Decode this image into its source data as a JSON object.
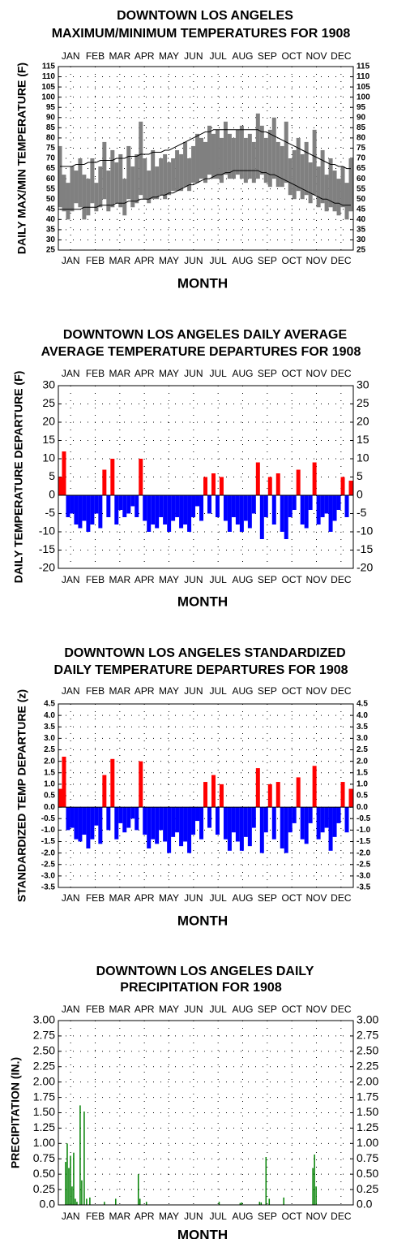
{
  "chart_data": [
    {
      "type": "range",
      "title": [
        "DOWNTOWN LOS ANGELES",
        "MAXIMUM/MINIMUM TEMPERATURES FOR 1908"
      ],
      "ylabel": "DAILY MAX/MIN TEMPERATURE (F)",
      "xlabel": "MONTH",
      "months": [
        "JAN",
        "FEB",
        "MAR",
        "APR",
        "MAY",
        "JUN",
        "JUL",
        "AUG",
        "SEP",
        "OCT",
        "NOV",
        "DEC"
      ],
      "xlim": [
        1,
        366
      ],
      "x": [
        3,
        8,
        13,
        18,
        23,
        28,
        33,
        38,
        43,
        48,
        53,
        58,
        63,
        68,
        73,
        78,
        83,
        88,
        93,
        98,
        103,
        108,
        113,
        118,
        123,
        128,
        133,
        138,
        143,
        148,
        153,
        158,
        163,
        168,
        173,
        178,
        183,
        188,
        193,
        198,
        203,
        208,
        213,
        218,
        223,
        228,
        233,
        238,
        243,
        248,
        253,
        258,
        263,
        268,
        273,
        278,
        283,
        288,
        293,
        298,
        303,
        308,
        313,
        318,
        323,
        328,
        333,
        338,
        343,
        348,
        353,
        358,
        363
      ],
      "ylim": [
        25,
        115
      ],
      "yticks": [
        25,
        30,
        35,
        40,
        45,
        50,
        55,
        60,
        65,
        70,
        75,
        80,
        85,
        90,
        95,
        100,
        105,
        110,
        115
      ],
      "range": {
        "color": "#808080",
        "high": [
          76,
          62,
          58,
          66,
          64,
          70,
          62,
          60,
          70,
          58,
          66,
          78,
          64,
          74,
          68,
          72,
          60,
          76,
          66,
          72,
          88,
          70,
          64,
          74,
          66,
          70,
          72,
          68,
          70,
          74,
          72,
          78,
          70,
          76,
          82,
          80,
          78,
          86,
          82,
          84,
          80,
          88,
          82,
          80,
          84,
          86,
          80,
          82,
          78,
          92,
          86,
          80,
          84,
          90,
          78,
          76,
          88,
          70,
          74,
          80,
          72,
          78,
          68,
          84,
          66,
          74,
          62,
          70,
          64,
          60,
          66,
          58,
          70
        ],
        "low": [
          46,
          44,
          40,
          44,
          48,
          46,
          40,
          42,
          48,
          44,
          46,
          50,
          44,
          46,
          48,
          46,
          42,
          50,
          46,
          48,
          52,
          50,
          48,
          50,
          50,
          52,
          50,
          52,
          54,
          54,
          54,
          56,
          54,
          58,
          58,
          60,
          58,
          62,
          60,
          60,
          58,
          62,
          60,
          60,
          62,
          60,
          58,
          60,
          58,
          60,
          62,
          58,
          56,
          60,
          56,
          56,
          58,
          52,
          50,
          54,
          50,
          52,
          48,
          52,
          46,
          48,
          44,
          46,
          44,
          42,
          46,
          40,
          44
        ]
      },
      "lines": [
        {
          "color": "#000000",
          "values": [
            66,
            66,
            66,
            66,
            67,
            67,
            67,
            68,
            68,
            68,
            69,
            69,
            69,
            69,
            70,
            70,
            70,
            71,
            71,
            71,
            72,
            72,
            72,
            73,
            73,
            73,
            74,
            74,
            75,
            76,
            77,
            78,
            79,
            80,
            81,
            82,
            83,
            83,
            84,
            84,
            84,
            84,
            84,
            84,
            84,
            84,
            84,
            84,
            84,
            84,
            83,
            83,
            82,
            81,
            80,
            79,
            78,
            77,
            76,
            75,
            74,
            73,
            72,
            71,
            70,
            69,
            68,
            67,
            67,
            66,
            66,
            65,
            65
          ]
        },
        {
          "color": "#000000",
          "values": [
            45,
            45,
            45,
            45,
            45,
            45,
            46,
            46,
            46,
            46,
            47,
            47,
            47,
            47,
            48,
            48,
            48,
            49,
            49,
            49,
            50,
            50,
            50,
            51,
            51,
            52,
            52,
            53,
            53,
            54,
            55,
            56,
            57,
            57,
            58,
            59,
            60,
            60,
            61,
            62,
            62,
            63,
            63,
            64,
            64,
            64,
            64,
            64,
            64,
            64,
            63,
            63,
            62,
            62,
            61,
            60,
            59,
            58,
            57,
            56,
            55,
            54,
            53,
            52,
            51,
            50,
            50,
            49,
            48,
            48,
            47,
            47,
            47
          ]
        }
      ]
    },
    {
      "type": "bar",
      "title": [
        "DOWNTOWN LOS ANGELES DAILY AVERAGE",
        "AVERAGE TEMPERATURE DEPARTURES FOR 1908"
      ],
      "ylabel": "DAILY TEMPERATURE DEPARTURE (F)",
      "xlabel": "MONTH",
      "months": [
        "JAN",
        "FEB",
        "MAR",
        "APR",
        "MAY",
        "JUN",
        "JUL",
        "AUG",
        "SEP",
        "OCT",
        "NOV",
        "DEC"
      ],
      "xlim": [
        1,
        366
      ],
      "x": [
        3,
        8,
        13,
        18,
        23,
        28,
        33,
        38,
        43,
        48,
        53,
        58,
        63,
        68,
        73,
        78,
        83,
        88,
        93,
        98,
        103,
        108,
        113,
        118,
        123,
        128,
        133,
        138,
        143,
        148,
        153,
        158,
        163,
        168,
        173,
        178,
        183,
        188,
        193,
        198,
        203,
        208,
        213,
        218,
        223,
        228,
        233,
        238,
        243,
        248,
        253,
        258,
        263,
        268,
        273,
        278,
        283,
        288,
        293,
        298,
        303,
        308,
        313,
        318,
        323,
        328,
        333,
        338,
        343,
        348,
        353,
        358,
        363
      ],
      "ylim": [
        -20,
        30
      ],
      "yticks": [
        -20,
        -15,
        -10,
        -5,
        0,
        5,
        10,
        15,
        20,
        25,
        30
      ],
      "pos_color": "#ff0000",
      "neg_color": "#0000ff",
      "values": [
        5,
        12,
        -6,
        -5,
        -8,
        -9,
        -7,
        -10,
        -8,
        -5,
        -9,
        7,
        -6,
        10,
        -8,
        -4,
        -6,
        -5,
        -3,
        -6,
        10,
        -7,
        -10,
        -8,
        -9,
        -6,
        -8,
        -10,
        -7,
        -6,
        -9,
        -8,
        -10,
        -6,
        -3,
        -7,
        5,
        -5,
        6,
        -6,
        5,
        -7,
        -10,
        -6,
        -8,
        -10,
        -7,
        -9,
        -5,
        9,
        -12,
        -6,
        5,
        -8,
        6,
        -10,
        -12,
        -6,
        -4,
        7,
        -8,
        -9,
        -4,
        9,
        -8,
        -6,
        -5,
        -10,
        -7,
        -4,
        5,
        -6,
        4
      ]
    },
    {
      "type": "bar",
      "title": [
        "DOWNTOWN LOS ANGELES STANDARDIZED",
        "DAILY TEMPERATURE DEPARTURES FOR 1908"
      ],
      "ylabel": "STANDARDIZED TEMP DEPARTURE (z)",
      "xlabel": "MONTH",
      "months": [
        "JAN",
        "FEB",
        "MAR",
        "APR",
        "MAY",
        "JUN",
        "JUL",
        "AUG",
        "SEP",
        "OCT",
        "NOV",
        "DEC"
      ],
      "xlim": [
        1,
        366
      ],
      "x": [
        3,
        8,
        13,
        18,
        23,
        28,
        33,
        38,
        43,
        48,
        53,
        58,
        63,
        68,
        73,
        78,
        83,
        88,
        93,
        98,
        103,
        108,
        113,
        118,
        123,
        128,
        133,
        138,
        143,
        148,
        153,
        158,
        163,
        168,
        173,
        178,
        183,
        188,
        193,
        198,
        203,
        208,
        213,
        218,
        223,
        228,
        233,
        238,
        243,
        248,
        253,
        258,
        263,
        268,
        273,
        278,
        283,
        288,
        293,
        298,
        303,
        308,
        313,
        318,
        323,
        328,
        333,
        338,
        343,
        348,
        353,
        358,
        363
      ],
      "ylim": [
        -3.5,
        4.5
      ],
      "yticks": [
        -3.5,
        {
          "value": -3,
          "label": "-3.0"
        },
        -2.5,
        {
          "value": -2,
          "label": "-2.0"
        },
        -1.5,
        {
          "value": -1,
          "label": "-1.0"
        },
        -0.5,
        {
          "value": 0,
          "label": "0.0"
        },
        0.5,
        {
          "value": 1,
          "label": "1.0"
        },
        1.5,
        {
          "value": 2,
          "label": "2.0"
        },
        2.5,
        {
          "value": 3,
          "label": "3.0"
        },
        3.5,
        {
          "value": 4,
          "label": "4.0"
        },
        4.5
      ],
      "pos_color": "#ff0000",
      "neg_color": "#0000ff",
      "values": [
        0.8,
        2.2,
        -1.0,
        -0.9,
        -1.4,
        -1.5,
        -1.2,
        -1.8,
        -1.4,
        -0.8,
        -1.6,
        1.4,
        -1.0,
        2.1,
        -1.4,
        -0.7,
        -1.1,
        -0.9,
        -0.5,
        -1.0,
        2.0,
        -1.2,
        -1.8,
        -1.4,
        -1.6,
        -1.0,
        -1.5,
        -2.0,
        -1.3,
        -1.1,
        -1.7,
        -1.5,
        -2.0,
        -1.2,
        -0.6,
        -1.4,
        1.1,
        -0.9,
        1.4,
        -1.2,
        1.0,
        -1.4,
        -1.9,
        -1.1,
        -1.5,
        -1.9,
        -1.3,
        -1.7,
        -0.9,
        1.7,
        -2.0,
        -1.1,
        1.0,
        -1.4,
        1.1,
        -1.8,
        -2.0,
        -1.1,
        -0.7,
        1.3,
        -1.4,
        -1.6,
        -0.7,
        1.8,
        -1.4,
        -1.1,
        -0.9,
        -1.9,
        -1.3,
        -0.7,
        1.1,
        -1.1,
        0.8
      ]
    },
    {
      "type": "bar",
      "title": [
        "DOWNTOWN LOS ANGELES DAILY",
        "PRECIPITATION FOR 1908"
      ],
      "ylabel": "PRECIPITATION (IN.)",
      "xlabel": "MONTH",
      "months": [
        "JAN",
        "FEB",
        "MAR",
        "APR",
        "MAY",
        "JUN",
        "JUL",
        "AUG",
        "SEP",
        "OCT",
        "NOV",
        "DEC"
      ],
      "xlim": [
        1,
        366
      ],
      "x": [
        10,
        12,
        14,
        16,
        18,
        20,
        22,
        24,
        28,
        30,
        33,
        36,
        40,
        58,
        72,
        100,
        102,
        110,
        200,
        226,
        228,
        250,
        252,
        258,
        262,
        280,
        316,
        318,
        320
      ],
      "ylim": [
        0,
        3
      ],
      "yticks": [
        {
          "value": 0,
          "label": "0.0"
        },
        {
          "value": 0.25,
          "label": "0.25"
        },
        {
          "value": 0.5,
          "label": "0.50"
        },
        {
          "value": 0.75,
          "label": "0.75"
        },
        {
          "value": 1,
          "label": "1.00"
        },
        {
          "value": 1.25,
          "label": "1.25"
        },
        {
          "value": 1.5,
          "label": "1.50"
        },
        {
          "value": 1.75,
          "label": "1.75"
        },
        {
          "value": 2,
          "label": "2.00"
        },
        {
          "value": 2.25,
          "label": "2.25"
        },
        {
          "value": 2.5,
          "label": "2.50"
        },
        {
          "value": 2.75,
          "label": "2.75"
        },
        {
          "value": 3,
          "label": "3.00"
        }
      ],
      "pos_color": "#008000",
      "neg_color": "#008000",
      "values": [
        0.7,
        1.0,
        0.6,
        0.8,
        0.3,
        0.85,
        0.1,
        0.05,
        1.62,
        0.4,
        1.52,
        0.1,
        0.12,
        0.05,
        0.1,
        0.5,
        0.1,
        0.05,
        0.05,
        0.03,
        0.04,
        0.05,
        0.04,
        0.78,
        0.1,
        0.12,
        0.6,
        0.82,
        0.3
      ]
    }
  ]
}
